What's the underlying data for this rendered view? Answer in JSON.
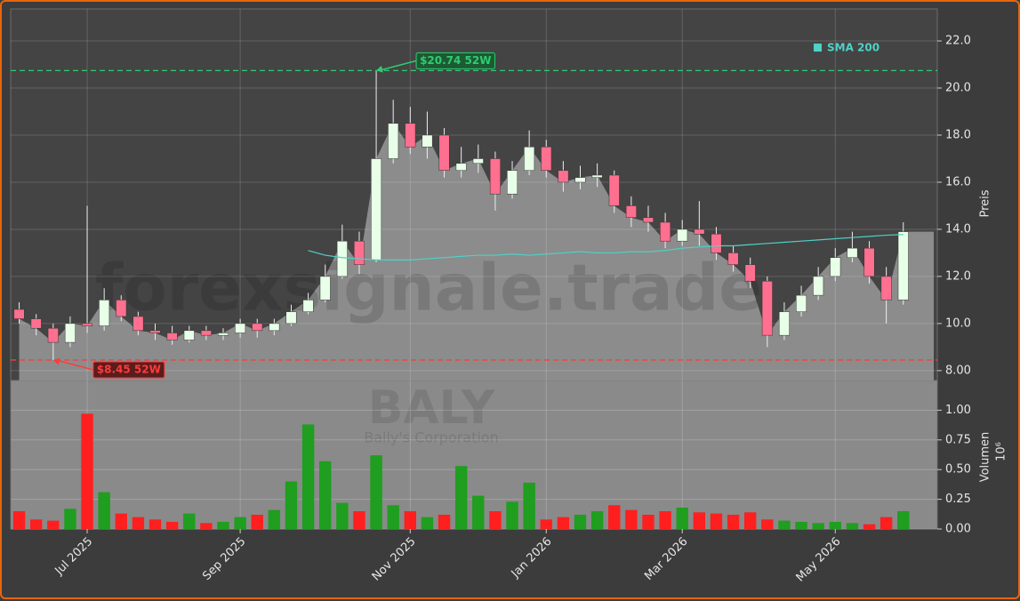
{
  "chart_data": [
    {
      "type": "candlestick",
      "ylabel": "Preis",
      "watermark": "forexsignale.trade",
      "open": [
        10.6,
        10.2,
        9.8,
        9.2,
        10.0,
        9.9,
        11.0,
        10.3,
        9.7,
        9.6,
        9.3,
        9.7,
        9.5,
        9.6,
        10.0,
        9.7,
        10.0,
        10.5,
        11.0,
        12.0,
        13.5,
        12.7,
        17.0,
        18.5,
        17.5,
        18.0,
        16.5,
        16.8,
        17.0,
        15.5,
        16.5,
        17.5,
        16.5,
        16.0,
        16.2,
        16.3,
        15.0,
        14.5,
        14.3,
        13.5,
        14.0,
        13.8,
        13.0,
        12.5,
        11.8,
        9.5,
        10.5,
        11.2,
        12.0,
        12.8,
        13.2,
        12.0,
        11.0
      ],
      "high": [
        10.9,
        10.4,
        10.0,
        10.3,
        15.0,
        11.5,
        11.2,
        10.5,
        10.0,
        9.9,
        9.9,
        9.9,
        9.8,
        10.2,
        10.2,
        10.2,
        10.8,
        11.3,
        12.5,
        14.2,
        13.9,
        20.74,
        19.5,
        19.2,
        19.0,
        18.3,
        17.5,
        17.6,
        17.3,
        16.9,
        18.2,
        17.8,
        16.9,
        16.7,
        16.8,
        16.5,
        15.4,
        15.0,
        14.7,
        14.4,
        15.2,
        14.1,
        13.3,
        12.8,
        12.0,
        10.9,
        11.6,
        12.4,
        13.2,
        13.9,
        13.5,
        12.4,
        14.3
      ],
      "low": [
        10.0,
        9.5,
        8.45,
        9.0,
        9.6,
        9.7,
        10.1,
        9.5,
        9.3,
        9.1,
        9.2,
        9.3,
        9.3,
        9.4,
        9.4,
        9.5,
        9.9,
        10.4,
        10.9,
        11.9,
        12.1,
        12.6,
        16.8,
        17.2,
        17.0,
        16.2,
        16.2,
        16.4,
        14.8,
        15.3,
        16.3,
        16.2,
        15.6,
        15.7,
        15.8,
        14.7,
        14.1,
        13.9,
        13.2,
        13.3,
        13.3,
        12.7,
        12.2,
        11.5,
        9.0,
        9.3,
        10.3,
        11.0,
        11.8,
        12.6,
        11.7,
        10.0,
        10.8
      ],
      "close": [
        10.2,
        9.8,
        9.2,
        10.0,
        9.9,
        11.0,
        10.3,
        9.7,
        9.6,
        9.3,
        9.7,
        9.5,
        9.6,
        10.0,
        9.7,
        10.0,
        10.5,
        11.0,
        12.0,
        13.5,
        12.5,
        17.0,
        18.5,
        17.5,
        18.0,
        16.5,
        16.8,
        17.0,
        15.5,
        16.5,
        17.5,
        16.5,
        16.0,
        16.2,
        16.3,
        15.0,
        14.5,
        14.3,
        13.5,
        14.0,
        13.8,
        13.0,
        12.5,
        11.8,
        9.5,
        10.5,
        11.2,
        12.0,
        12.8,
        13.2,
        12.0,
        11.0,
        13.9
      ],
      "up_color": "#e8ffe8",
      "down_color": "#ff6f8f",
      "area_color": "#8c8c8c",
      "series": [
        {
          "name": "SMA 200",
          "color": "#4fd1c5",
          "values": [
            null,
            null,
            null,
            null,
            null,
            null,
            null,
            null,
            null,
            null,
            null,
            null,
            null,
            null,
            null,
            null,
            null,
            13.1,
            12.9,
            12.8,
            12.75,
            12.7,
            12.7,
            12.7,
            12.75,
            12.8,
            12.85,
            12.9,
            12.9,
            12.95,
            12.9,
            12.95,
            13.0,
            13.05,
            13.0,
            13.0,
            13.05,
            13.05,
            13.1,
            13.2,
            13.25,
            13.3,
            13.3,
            13.35,
            13.4,
            13.45,
            13.5,
            13.55,
            13.6,
            13.65,
            13.7,
            13.75,
            13.78
          ]
        }
      ],
      "legend": "upper right",
      "annotations": [
        {
          "label": "$20.74 52W",
          "value": 20.74,
          "color": "#2ecc71"
        },
        {
          "label": "$8.45 52W",
          "value": 8.45,
          "color": "#ff3b3b"
        }
      ],
      "ylim": [
        7.58,
        23.36
      ],
      "yticks": [
        {
          "value": 8,
          "label": "8.00"
        },
        {
          "value": 10,
          "label": "10.0"
        },
        {
          "value": 12,
          "label": "12.0"
        },
        {
          "value": 14,
          "label": "14.0"
        },
        {
          "value": 16,
          "label": "16.0"
        },
        {
          "value": 18,
          "label": "18.0"
        },
        {
          "value": 20,
          "label": "20.0"
        },
        {
          "value": 22,
          "label": "22.0"
        }
      ],
      "grid": true
    },
    {
      "type": "bar",
      "title": "BALY",
      "subtitle": "Bally's Corporation",
      "ylabel": "Volumen",
      "scale_label": "10⁶",
      "categories": [
        null,
        null,
        null,
        null,
        "Jul 2025",
        null,
        null,
        null,
        null,
        null,
        null,
        null,
        null,
        "Sep 2025",
        null,
        null,
        null,
        null,
        null,
        null,
        null,
        null,
        null,
        "Nov 2025",
        null,
        null,
        null,
        null,
        null,
        null,
        null,
        "Jan 2026",
        null,
        null,
        null,
        null,
        null,
        null,
        null,
        "Mar 2026",
        null,
        null,
        null,
        null,
        null,
        null,
        null,
        null,
        "May 2026",
        null,
        null,
        null,
        null
      ],
      "values": [
        0.15,
        0.08,
        0.07,
        0.17,
        0.97,
        0.31,
        0.13,
        0.1,
        0.08,
        0.06,
        0.13,
        0.05,
        0.06,
        0.1,
        0.12,
        0.16,
        0.4,
        0.88,
        0.57,
        0.22,
        0.15,
        0.62,
        0.2,
        0.15,
        0.1,
        0.12,
        0.53,
        0.28,
        0.15,
        0.23,
        0.39,
        0.08,
        0.1,
        0.12,
        0.15,
        0.2,
        0.16,
        0.12,
        0.15,
        0.18,
        0.14,
        0.13,
        0.12,
        0.14,
        0.08,
        0.07,
        0.06,
        0.05,
        0.06,
        0.05,
        0.04,
        0.1,
        0.15
      ],
      "up_color": "#1f9e1f",
      "down_color": "#ff1f1f",
      "ylim": [
        0,
        1.25
      ],
      "yticks": [
        {
          "value": 0,
          "label": "0.00"
        },
        {
          "value": 0.25,
          "label": "0.25"
        },
        {
          "value": 0.5,
          "label": "0.50"
        },
        {
          "value": 0.75,
          "label": "0.75"
        },
        {
          "value": 1,
          "label": "1.00"
        }
      ],
      "grid": true
    }
  ]
}
